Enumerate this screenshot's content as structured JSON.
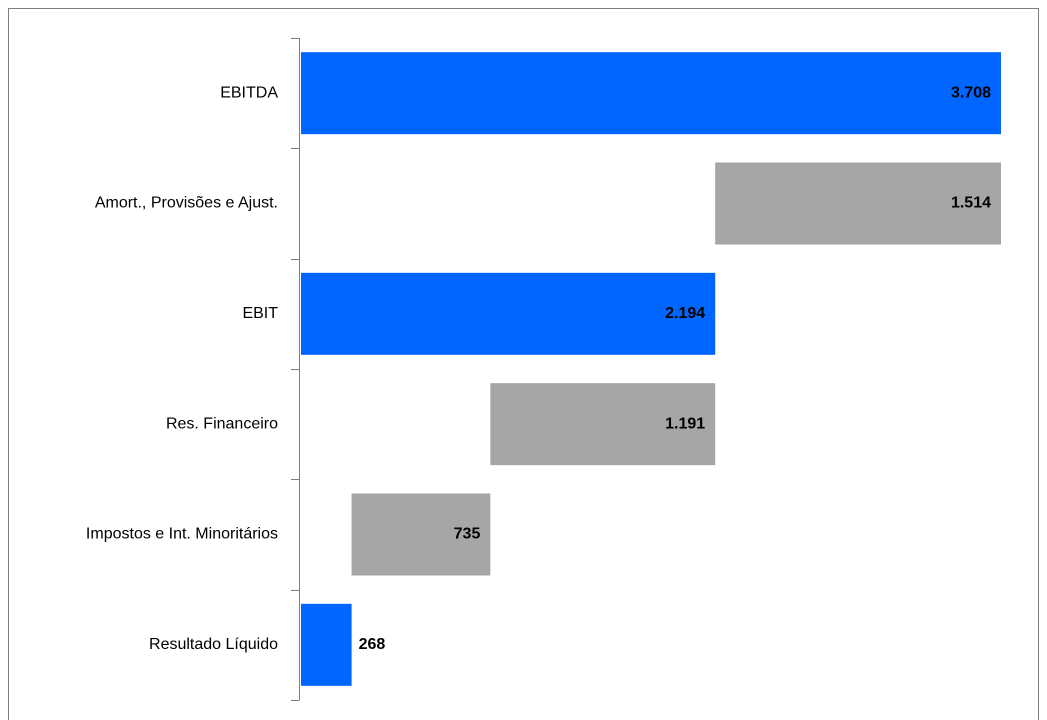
{
  "chart_data": {
    "type": "waterfall",
    "orientation": "horizontal",
    "categories": [
      "EBITDA",
      "Amort., Provisões e Ajust.",
      "EBIT",
      "Res. Financeiro",
      "Impostos e Int. Minoritários",
      "Resultado Líquido"
    ],
    "values": [
      3708,
      1514,
      2194,
      1191,
      735,
      268
    ],
    "value_labels": [
      "3.708",
      "1.514",
      "2.194",
      "1.191",
      "735",
      "268"
    ],
    "measure": [
      "total",
      "decrease",
      "total",
      "decrease",
      "decrease",
      "total"
    ],
    "colors": {
      "total": "#0066ff",
      "decrease": "#a6a6a6"
    },
    "xlim": [
      0,
      3708
    ]
  }
}
